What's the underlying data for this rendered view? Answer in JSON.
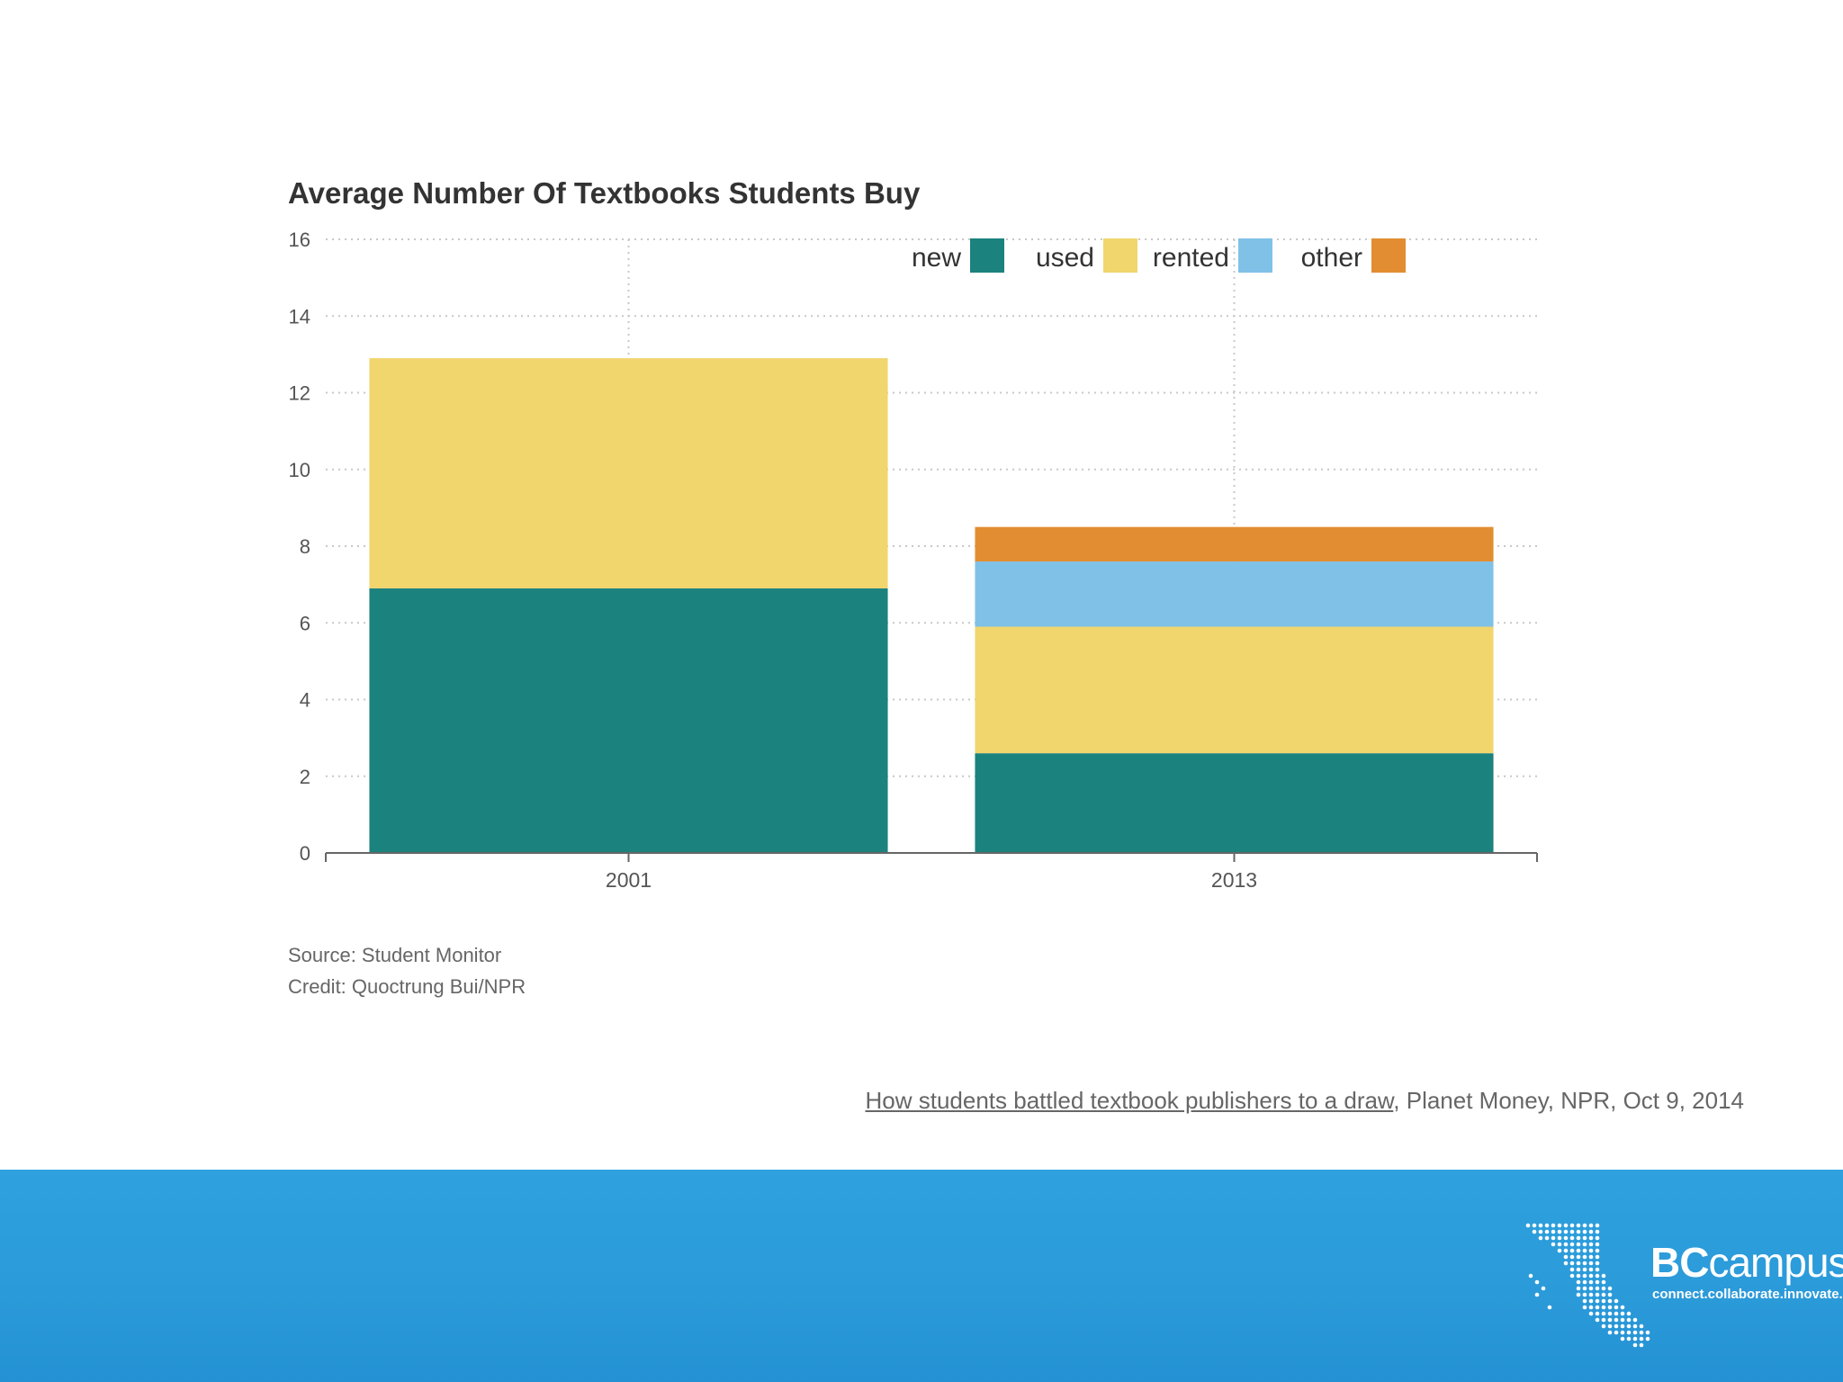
{
  "chart_data": {
    "type": "bar",
    "stacked": true,
    "title": "Average Number Of Textbooks Students Buy",
    "categories": [
      "2001",
      "2013"
    ],
    "series": [
      {
        "name": "new",
        "color": "#1b827e",
        "values": [
          6.9,
          2.6
        ]
      },
      {
        "name": "used",
        "color": "#f1d56d",
        "values": [
          6.0,
          3.3
        ]
      },
      {
        "name": "rented",
        "color": "#80c1e8",
        "values": [
          0,
          1.7
        ]
      },
      {
        "name": "other",
        "color": "#e28d31",
        "values": [
          0,
          0.9
        ]
      }
    ],
    "ylim": [
      0,
      16
    ],
    "yticks": [
      "0",
      "2",
      "4",
      "6",
      "8",
      "10",
      "12",
      "14",
      "16"
    ],
    "xlabel": "",
    "ylabel": "",
    "legend": "top-right",
    "grid": true
  },
  "notes": {
    "source": "Source: Student Monitor",
    "credit": "Credit: Quoctrung Bui/NPR"
  },
  "citation": {
    "link_text": "How students battled textbook publishers to a draw",
    "rest": ", Planet Money, NPR, Oct 9, 2014"
  },
  "brand": {
    "name_bold": "BC",
    "name_rest": "campus",
    "tagline": "connect.collaborate.innovate.",
    "logo_icon": "bc-map-dots-icon"
  },
  "colors": {
    "footer": "#2b9ad9",
    "grid": "#c8c8c8"
  }
}
